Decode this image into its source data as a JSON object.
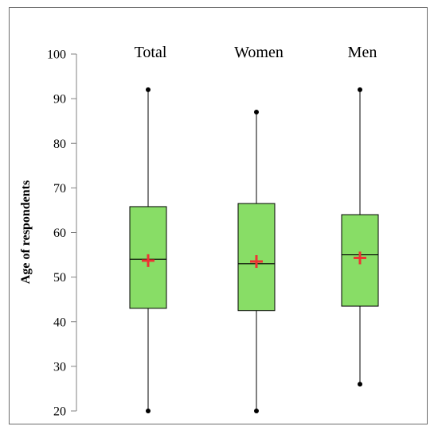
{
  "chart_data": {
    "type": "box",
    "title": "",
    "xlabel": "",
    "ylabel": "Age of respondents",
    "ylim": [
      20,
      100
    ],
    "yticks": [
      20,
      30,
      40,
      50,
      60,
      70,
      80,
      90,
      100
    ],
    "ytick_labels": [
      "20",
      "30",
      "40",
      "50",
      "60",
      "70",
      "80",
      "90",
      "100"
    ],
    "grid": false,
    "categories": [
      "Total",
      "Women",
      "Men"
    ],
    "boxes": [
      {
        "category": "Total",
        "min": 20,
        "q1": 43,
        "median": 54,
        "mean": 53.7,
        "q3": 65.8,
        "max": 92
      },
      {
        "category": "Women",
        "min": 20,
        "q1": 42.5,
        "median": 53,
        "mean": 53.5,
        "q3": 66.5,
        "max": 87
      },
      {
        "category": "Men",
        "min": 26,
        "q1": 43.5,
        "median": 55,
        "mean": 54.3,
        "q3": 64,
        "max": 92
      }
    ],
    "colors": {
      "box_fill": "#88dd66",
      "box_stroke": "#000000",
      "mean_marker": "#ee3333",
      "whisker": "#000000"
    }
  }
}
